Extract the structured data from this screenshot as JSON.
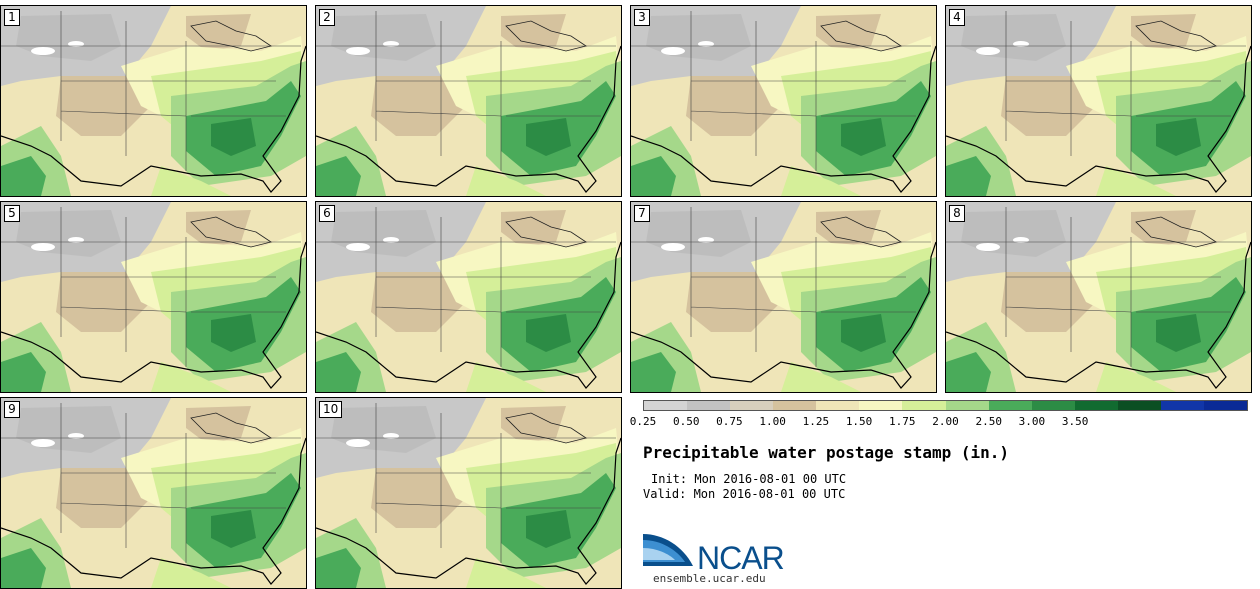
{
  "panels": [
    {
      "label": "1"
    },
    {
      "label": "2"
    },
    {
      "label": "3"
    },
    {
      "label": "4"
    },
    {
      "label": "5"
    },
    {
      "label": "6"
    },
    {
      "label": "7"
    },
    {
      "label": "8"
    },
    {
      "label": "9"
    },
    {
      "label": "10"
    }
  ],
  "colorbar": {
    "colors": [
      "#d4d4d4",
      "#c2c2c2",
      "#d8cfbd",
      "#d5c29e",
      "#efe5b8",
      "#f7f7c2",
      "#d5ef99",
      "#a5d88a",
      "#4aab5a",
      "#2c8c45",
      "#116b30",
      "#0b4f23",
      "#1136a8",
      "#0a2a96"
    ],
    "ticks": [
      "0.25",
      "0.50",
      "0.75",
      "1.00",
      "1.25",
      "1.50",
      "1.75",
      "2.00",
      "2.50",
      "3.00",
      "3.50"
    ]
  },
  "title": "Precipitable water postage stamp (in.)",
  "init": "Init: Mon 2016-08-01 00 UTC",
  "valid": "Valid: Mon 2016-08-01 00 UTC",
  "logo": {
    "name": "NCAR",
    "url": "ensemble.ucar.edu"
  }
}
